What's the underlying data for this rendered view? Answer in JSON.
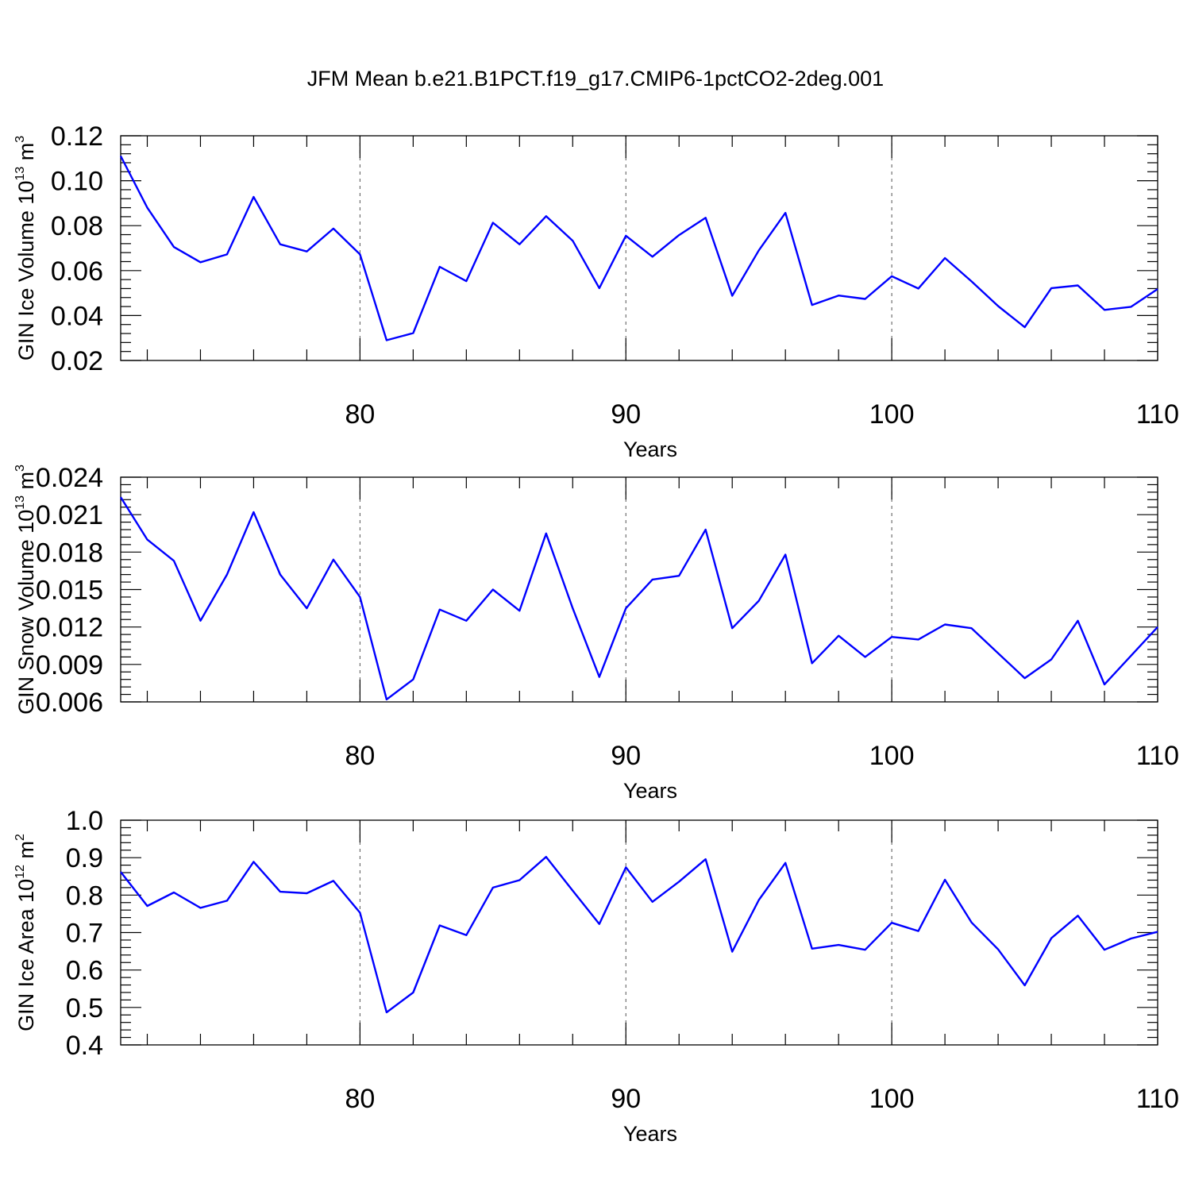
{
  "title": "JFM Mean b.e21.B1PCT.f19_g17.CMIP6-1pctCO2-2deg.001",
  "colors": {
    "line": "#0000ff",
    "axis": "#000000",
    "grid": "#555555"
  },
  "chart_data": [
    {
      "type": "line",
      "ylabel": {
        "text": "GIN Ice Volume 10",
        "exp": "13",
        "unit": "m",
        "unit_exp": "3"
      },
      "xlabel": "Years",
      "xlim": [
        71,
        110
      ],
      "ylim": [
        0.02,
        0.12
      ],
      "xticks": [
        "80",
        "90",
        "100",
        "110"
      ],
      "yticks": [
        "0.02",
        "0.04",
        "0.06",
        "0.08",
        "0.10",
        "0.12"
      ],
      "grid": "vertical dashed at major x ticks",
      "x": [
        71,
        72,
        73,
        74,
        75,
        76,
        77,
        78,
        79,
        80,
        81,
        82,
        83,
        84,
        85,
        86,
        87,
        88,
        89,
        90,
        91,
        92,
        93,
        94,
        95,
        96,
        97,
        98,
        99,
        100,
        101,
        102,
        103,
        104,
        105,
        106,
        107,
        108,
        109,
        110
      ],
      "series": [
        {
          "values": [
            0.111,
            0.088,
            0.0705,
            0.0637,
            0.0672,
            0.0928,
            0.0717,
            0.0685,
            0.0787,
            0.0672,
            0.029,
            0.0322,
            0.0617,
            0.0553,
            0.0813,
            0.0717,
            0.0842,
            0.0733,
            0.0522,
            0.0755,
            0.0662,
            0.0758,
            0.0835,
            0.0488,
            0.069,
            0.0857,
            0.0447,
            0.0489,
            0.0474,
            0.0575,
            0.052,
            0.0656,
            0.0552,
            0.0442,
            0.0348,
            0.0522,
            0.0534,
            0.0425,
            0.0439,
            0.0518
          ]
        }
      ]
    },
    {
      "type": "line",
      "ylabel": {
        "text": "GIN Snow Volume 10",
        "exp": "13",
        "unit": "m",
        "unit_exp": "3"
      },
      "xlabel": "Years",
      "xlim": [
        71,
        110
      ],
      "ylim": [
        0.006,
        0.024
      ],
      "xticks": [
        "80",
        "90",
        "100",
        "110"
      ],
      "yticks": [
        "0.006",
        "0.009",
        "0.012",
        "0.015",
        "0.018",
        "0.021",
        "0.024"
      ],
      "grid": "vertical dashed at major x ticks",
      "x": [
        71,
        72,
        73,
        74,
        75,
        76,
        77,
        78,
        79,
        80,
        81,
        82,
        83,
        84,
        85,
        86,
        87,
        88,
        89,
        90,
        91,
        92,
        93,
        94,
        95,
        96,
        97,
        98,
        99,
        100,
        101,
        102,
        103,
        104,
        105,
        106,
        107,
        108,
        109,
        110
      ],
      "series": [
        {
          "values": [
            0.0224,
            0.019,
            0.0173,
            0.0125,
            0.0162,
            0.0212,
            0.0162,
            0.0135,
            0.0174,
            0.0144,
            0.0062,
            0.0078,
            0.0134,
            0.0125,
            0.015,
            0.0133,
            0.0195,
            0.0135,
            0.008,
            0.0135,
            0.0158,
            0.0161,
            0.0198,
            0.0119,
            0.0141,
            0.0178,
            0.0091,
            0.0113,
            0.0096,
            0.0112,
            0.011,
            0.0122,
            0.0119,
            0.0099,
            0.0079,
            0.0094,
            0.0125,
            0.0074,
            0.0097,
            0.012
          ]
        }
      ]
    },
    {
      "type": "line",
      "ylabel": {
        "text": "GIN Ice Area 10",
        "exp": "12",
        "unit": "m",
        "unit_exp": "2"
      },
      "xlabel": "Years",
      "xlim": [
        71,
        110
      ],
      "ylim": [
        0.4,
        1.0
      ],
      "xticks": [
        "80",
        "90",
        "100",
        "110"
      ],
      "yticks": [
        "0.4",
        "0.5",
        "0.6",
        "0.7",
        "0.8",
        "0.9",
        "1.0"
      ],
      "grid": "vertical dashed at major x ticks",
      "x": [
        71,
        72,
        73,
        74,
        75,
        76,
        77,
        78,
        79,
        80,
        81,
        82,
        83,
        84,
        85,
        86,
        87,
        88,
        89,
        90,
        91,
        92,
        93,
        94,
        95,
        96,
        97,
        98,
        99,
        100,
        101,
        102,
        103,
        104,
        105,
        106,
        107,
        108,
        109,
        110
      ],
      "series": [
        {
          "values": [
            0.862,
            0.771,
            0.807,
            0.766,
            0.785,
            0.889,
            0.809,
            0.805,
            0.838,
            0.753,
            0.487,
            0.54,
            0.719,
            0.693,
            0.82,
            0.84,
            0.902,
            0.812,
            0.723,
            0.874,
            0.782,
            0.836,
            0.896,
            0.649,
            0.787,
            0.886,
            0.657,
            0.667,
            0.654,
            0.726,
            0.704,
            0.841,
            0.727,
            0.655,
            0.559,
            0.685,
            0.745,
            0.654,
            0.684,
            0.702
          ]
        }
      ]
    }
  ]
}
